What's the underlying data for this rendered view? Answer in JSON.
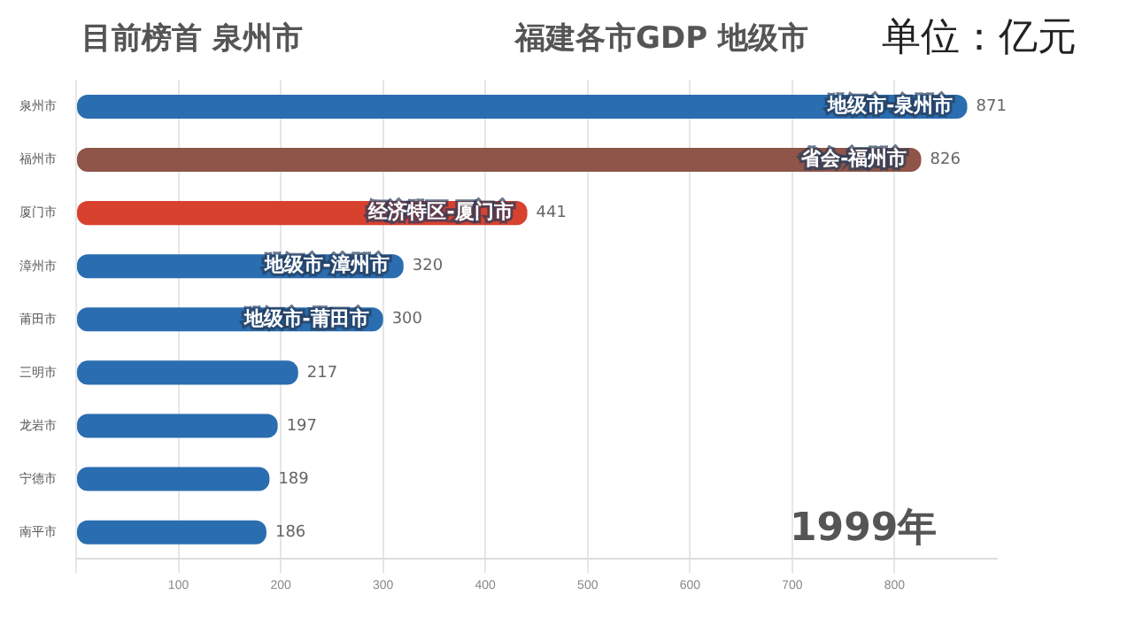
{
  "chart_data": {
    "type": "bar",
    "orientation": "horizontal",
    "title": "福建各市GDP 地级市",
    "subtitle": "目前榜首 泉州市",
    "categories": [
      "泉州市",
      "福州市",
      "厦门市",
      "漳州市",
      "莆田市",
      "三明市",
      "龙岩市",
      "宁德市",
      "南平市"
    ],
    "values": [
      871,
      826,
      441,
      320,
      300,
      217,
      197,
      189,
      186
    ],
    "colors": [
      "#2a6db0",
      "#8e5548",
      "#d9412f",
      "#2a6db0",
      "#2a6db0",
      "#2a6db0",
      "#2a6db0",
      "#2a6db0",
      "#2a6db0"
    ],
    "data_labels": true,
    "xlim": [
      0,
      900
    ],
    "xticks": [
      {
        "value": 0,
        "label": null
      },
      100,
      200,
      300,
      400,
      500,
      600,
      700,
      800
    ],
    "grid": "x",
    "legend": false,
    "annotations": [
      "单位：亿元",
      "1999年",
      {
        "text": "地级市-泉州市",
        "x": 871,
        "y": "泉州市"
      },
      {
        "text": "省会-福州市",
        "x": 826,
        "y": "福州市"
      },
      {
        "text": "经济特区-厦门市",
        "x": 441,
        "y": "厦门市"
      },
      {
        "text": "地级市-漳州市",
        "x": 320,
        "y": "漳州市"
      },
      {
        "text": "地级市-莆田市",
        "x": 300,
        "y": "莆田市"
      }
    ]
  }
}
